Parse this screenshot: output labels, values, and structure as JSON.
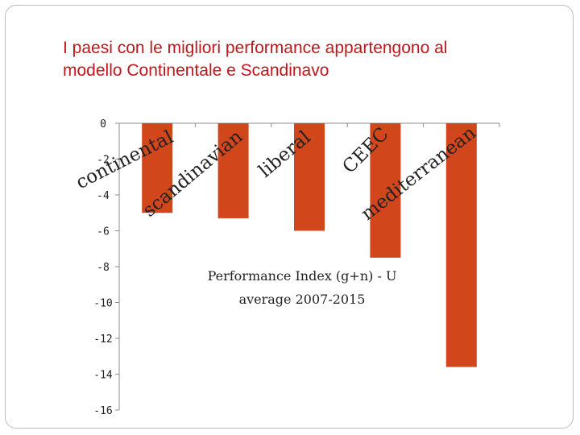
{
  "slide": {
    "title_line1": "I paesi con le migliori performance  appartengono al",
    "title_line2": "modello Continentale e Scandinavo"
  },
  "chart_data": {
    "type": "bar",
    "categories": [
      "continental",
      "scandinavian",
      "liberal",
      "CEEC",
      "mediterranean"
    ],
    "values": [
      -5,
      -5.3,
      -6,
      -7.5,
      -13.6
    ],
    "ylim": [
      -16,
      0
    ],
    "yticks": [
      0,
      -2,
      -4,
      -6,
      -8,
      -10,
      -12,
      -14,
      -16
    ],
    "annotation_line1": "Performance Index (g+n) - U",
    "annotation_line2": "average 2007-2015",
    "bar_color": "#d2461c",
    "grid": false,
    "legend": "none"
  }
}
